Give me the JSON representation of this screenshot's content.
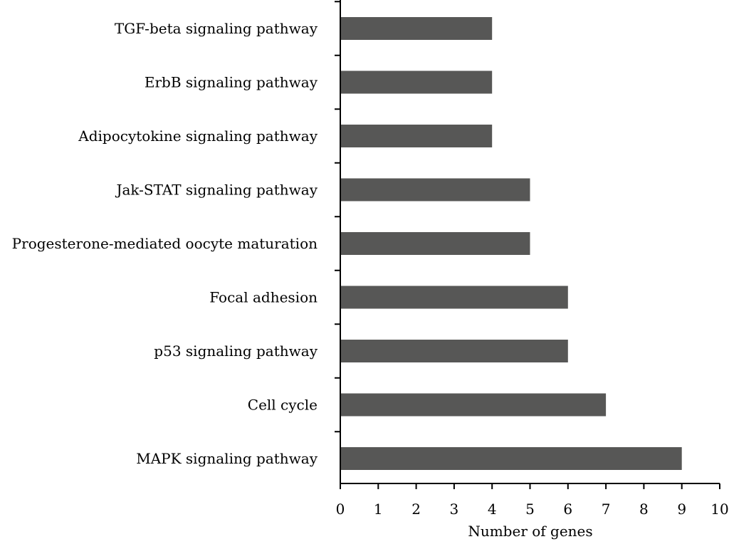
{
  "chart_data": {
    "type": "bar",
    "orientation": "horizontal",
    "categories": [
      "TGF-beta signaling pathway",
      "ErbB signaling pathway",
      "Adipocytokine signaling pathway",
      "Jak-STAT signaling pathway",
      "Progesterone-mediated oocyte maturation",
      "Focal adhesion",
      "p53 signaling pathway",
      "Cell cycle",
      "MAPK signaling pathway"
    ],
    "values": [
      4,
      4,
      4,
      5,
      5,
      6,
      6,
      7,
      9
    ],
    "xlabel": "Number of genes",
    "ylabel": "",
    "title": "",
    "xlim": [
      0,
      10
    ],
    "xticks": [
      0,
      1,
      2,
      3,
      4,
      5,
      6,
      7,
      8,
      9,
      10
    ],
    "grid": false,
    "legend": "none",
    "colors": {
      "bar": "#575756",
      "axis": "#000000",
      "text": "#000000",
      "background": "#ffffff"
    }
  }
}
